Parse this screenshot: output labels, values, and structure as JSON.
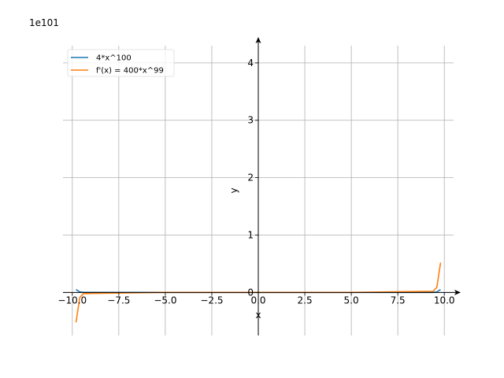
{
  "chart_data": {
    "type": "line",
    "title": "",
    "xlabel": "x",
    "ylabel": "y",
    "y_offset_text": "1e101",
    "xlim": [
      -10.5,
      10.5
    ],
    "ylim": [
      -0.75,
      4.3
    ],
    "x_ticks": [
      -10,
      -7.5,
      -5,
      -2.5,
      0,
      2.5,
      5,
      7.5,
      10
    ],
    "x_tick_labels": [
      "−10.0",
      "−7.5",
      "−5.0",
      "−2.5",
      "0.0",
      "2.5",
      "5.0",
      "7.5",
      "10.0"
    ],
    "y_ticks": [
      0,
      1,
      2,
      3,
      4
    ],
    "y_tick_labels": [
      "0",
      "1",
      "2",
      "3",
      "4"
    ],
    "grid": true,
    "legend_position": "top-left",
    "series": [
      {
        "name": "4*x^100",
        "color": "#1f77b4",
        "x": [
          -9.8,
          -9.6,
          -9.4,
          -5,
          0,
          5,
          9.4,
          9.6,
          9.8
        ],
        "y": [
          0.05,
          0.01,
          0.0,
          0.0,
          0.0,
          0.0,
          0.0,
          0.01,
          0.05
        ]
      },
      {
        "name": "f'(x) = 400*x^99",
        "color": "#ff7f0e",
        "x": [
          -9.8,
          -9.6,
          -9.4,
          -5,
          0,
          5,
          9.4,
          9.6,
          9.8
        ],
        "y": [
          -0.52,
          -0.09,
          -0.02,
          0.0,
          0.0,
          0.0,
          0.02,
          0.09,
          0.52
        ]
      }
    ]
  }
}
